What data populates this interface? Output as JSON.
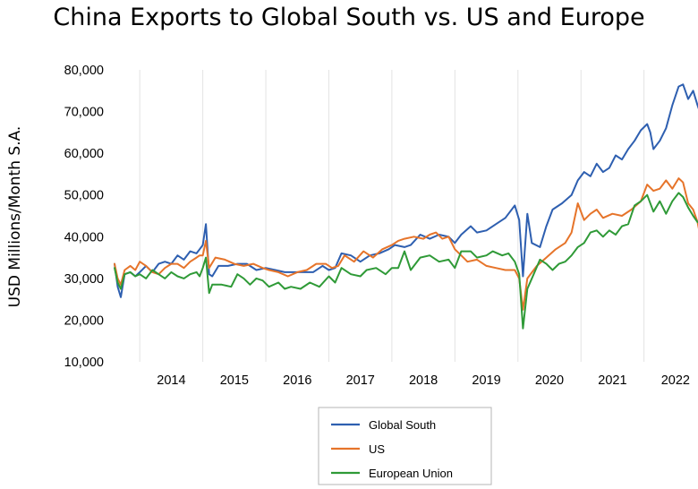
{
  "chart_data": {
    "type": "line",
    "title": "China Exports to Global South vs. US and Europe",
    "xlabel": "",
    "ylabel": "USD Millions/Month S.A.",
    "ylim": [
      10000,
      80000
    ],
    "xlim": [
      2013.6,
      2022.8
    ],
    "y_ticks": [
      10000,
      20000,
      30000,
      40000,
      50000,
      60000,
      70000,
      80000
    ],
    "y_tick_labels": [
      "10,000",
      "20,000",
      "30,000",
      "40,000",
      "50,000",
      "60,000",
      "70,000",
      "80,000"
    ],
    "x_tick_labels": [
      "2014",
      "2015",
      "2016",
      "2017",
      "2018",
      "2019",
      "2020",
      "2021",
      "2022"
    ],
    "grid": "vertical",
    "legend_position": "bottom-center",
    "colors": {
      "Global South": "#2e5fb0",
      "US": "#e6742a",
      "European Union": "#2f9a37"
    },
    "series": [
      {
        "name": "Global South",
        "points": [
          [
            2013.6,
            33500
          ],
          [
            2013.65,
            28000
          ],
          [
            2013.7,
            25500
          ],
          [
            2013.76,
            31000
          ],
          [
            2013.85,
            31500
          ],
          [
            2013.93,
            30500
          ],
          [
            2014.0,
            31500
          ],
          [
            2014.1,
            33000
          ],
          [
            2014.2,
            31500
          ],
          [
            2014.3,
            33500
          ],
          [
            2014.4,
            34000
          ],
          [
            2014.5,
            33500
          ],
          [
            2014.6,
            35500
          ],
          [
            2014.7,
            34500
          ],
          [
            2014.8,
            36500
          ],
          [
            2014.9,
            36000
          ],
          [
            2014.95,
            37000
          ],
          [
            2015.0,
            38000
          ],
          [
            2015.05,
            43000
          ],
          [
            2015.1,
            31000
          ],
          [
            2015.15,
            30500
          ],
          [
            2015.25,
            33000
          ],
          [
            2015.4,
            33000
          ],
          [
            2015.55,
            33500
          ],
          [
            2015.7,
            33500
          ],
          [
            2015.85,
            32000
          ],
          [
            2016.0,
            32500
          ],
          [
            2016.15,
            32000
          ],
          [
            2016.3,
            31500
          ],
          [
            2016.45,
            31500
          ],
          [
            2016.6,
            31500
          ],
          [
            2016.75,
            31500
          ],
          [
            2016.9,
            33000
          ],
          [
            2017.0,
            32000
          ],
          [
            2017.1,
            32500
          ],
          [
            2017.2,
            36000
          ],
          [
            2017.35,
            35500
          ],
          [
            2017.5,
            34000
          ],
          [
            2017.65,
            35500
          ],
          [
            2017.8,
            36000
          ],
          [
            2017.95,
            37000
          ],
          [
            2018.05,
            38000
          ],
          [
            2018.2,
            37500
          ],
          [
            2018.3,
            38000
          ],
          [
            2018.45,
            40500
          ],
          [
            2018.6,
            39500
          ],
          [
            2018.75,
            40500
          ],
          [
            2018.9,
            40000
          ],
          [
            2019.0,
            38500
          ],
          [
            2019.1,
            40500
          ],
          [
            2019.25,
            42500
          ],
          [
            2019.35,
            41000
          ],
          [
            2019.5,
            41500
          ],
          [
            2019.65,
            43000
          ],
          [
            2019.8,
            44500
          ],
          [
            2019.95,
            47500
          ],
          [
            2020.02,
            44000
          ],
          [
            2020.08,
            30500
          ],
          [
            2020.15,
            45500
          ],
          [
            2020.22,
            38500
          ],
          [
            2020.35,
            37500
          ],
          [
            2020.45,
            42500
          ],
          [
            2020.55,
            46500
          ],
          [
            2020.7,
            48000
          ],
          [
            2020.85,
            50000
          ],
          [
            2020.95,
            53500
          ],
          [
            2021.05,
            55500
          ],
          [
            2021.15,
            54500
          ],
          [
            2021.25,
            57500
          ],
          [
            2021.35,
            55500
          ],
          [
            2021.45,
            56500
          ],
          [
            2021.55,
            59500
          ],
          [
            2021.65,
            58500
          ],
          [
            2021.75,
            61000
          ],
          [
            2021.85,
            63000
          ],
          [
            2021.95,
            65500
          ],
          [
            2022.05,
            67000
          ],
          [
            2022.1,
            65000
          ],
          [
            2022.15,
            61000
          ],
          [
            2022.25,
            63000
          ],
          [
            2022.35,
            66000
          ],
          [
            2022.45,
            71500
          ],
          [
            2022.55,
            76000
          ],
          [
            2022.62,
            76500
          ],
          [
            2022.7,
            73000
          ],
          [
            2022.78,
            75000
          ],
          [
            2022.85,
            71500
          ],
          [
            2022.92,
            68500
          ],
          [
            2023.0,
            68500
          ]
        ]
      },
      {
        "name": "US",
        "points": [
          [
            2013.6,
            33500
          ],
          [
            2013.65,
            30000
          ],
          [
            2013.7,
            28500
          ],
          [
            2013.76,
            32000
          ],
          [
            2013.85,
            33000
          ],
          [
            2013.93,
            32000
          ],
          [
            2014.0,
            34000
          ],
          [
            2014.1,
            33000
          ],
          [
            2014.2,
            31500
          ],
          [
            2014.3,
            31000
          ],
          [
            2014.4,
            32500
          ],
          [
            2014.5,
            33500
          ],
          [
            2014.6,
            33500
          ],
          [
            2014.7,
            32500
          ],
          [
            2014.8,
            34000
          ],
          [
            2014.9,
            35000
          ],
          [
            2014.95,
            35500
          ],
          [
            2015.0,
            35500
          ],
          [
            2015.05,
            39000
          ],
          [
            2015.1,
            32500
          ],
          [
            2015.2,
            35000
          ],
          [
            2015.35,
            34500
          ],
          [
            2015.5,
            33500
          ],
          [
            2015.65,
            33000
          ],
          [
            2015.8,
            33500
          ],
          [
            2015.95,
            32500
          ],
          [
            2016.05,
            32000
          ],
          [
            2016.2,
            31500
          ],
          [
            2016.35,
            30500
          ],
          [
            2016.5,
            31500
          ],
          [
            2016.65,
            32000
          ],
          [
            2016.8,
            33500
          ],
          [
            2016.95,
            33500
          ],
          [
            2017.05,
            32500
          ],
          [
            2017.15,
            33000
          ],
          [
            2017.25,
            35500
          ],
          [
            2017.4,
            34000
          ],
          [
            2017.55,
            36500
          ],
          [
            2017.7,
            35000
          ],
          [
            2017.85,
            37000
          ],
          [
            2018.0,
            38000
          ],
          [
            2018.1,
            39000
          ],
          [
            2018.2,
            39500
          ],
          [
            2018.35,
            40000
          ],
          [
            2018.5,
            39500
          ],
          [
            2018.6,
            40500
          ],
          [
            2018.7,
            41000
          ],
          [
            2018.8,
            39500
          ],
          [
            2018.9,
            40000
          ],
          [
            2019.0,
            37000
          ],
          [
            2019.1,
            35500
          ],
          [
            2019.2,
            34000
          ],
          [
            2019.35,
            34500
          ],
          [
            2019.5,
            33000
          ],
          [
            2019.65,
            32500
          ],
          [
            2019.8,
            32000
          ],
          [
            2019.95,
            32000
          ],
          [
            2020.02,
            30000
          ],
          [
            2020.08,
            22500
          ],
          [
            2020.15,
            30000
          ],
          [
            2020.3,
            33000
          ],
          [
            2020.45,
            35000
          ],
          [
            2020.6,
            37000
          ],
          [
            2020.75,
            38500
          ],
          [
            2020.85,
            41000
          ],
          [
            2020.95,
            48000
          ],
          [
            2021.05,
            44000
          ],
          [
            2021.15,
            45500
          ],
          [
            2021.25,
            46500
          ],
          [
            2021.35,
            44500
          ],
          [
            2021.5,
            45500
          ],
          [
            2021.65,
            45000
          ],
          [
            2021.8,
            46500
          ],
          [
            2021.95,
            48500
          ],
          [
            2022.05,
            52500
          ],
          [
            2022.15,
            51000
          ],
          [
            2022.25,
            51500
          ],
          [
            2022.35,
            53500
          ],
          [
            2022.45,
            51500
          ],
          [
            2022.55,
            54000
          ],
          [
            2022.62,
            53000
          ],
          [
            2022.7,
            48000
          ],
          [
            2022.78,
            46500
          ],
          [
            2022.85,
            43500
          ],
          [
            2022.92,
            38000
          ],
          [
            2022.96,
            38500
          ],
          [
            2023.0,
            42000
          ]
        ]
      },
      {
        "name": "European Union",
        "points": [
          [
            2013.6,
            32500
          ],
          [
            2013.65,
            29000
          ],
          [
            2013.7,
            27500
          ],
          [
            2013.76,
            31000
          ],
          [
            2013.85,
            31500
          ],
          [
            2013.93,
            30500
          ],
          [
            2014.0,
            31000
          ],
          [
            2014.1,
            30000
          ],
          [
            2014.2,
            32000
          ],
          [
            2014.3,
            31000
          ],
          [
            2014.4,
            30000
          ],
          [
            2014.5,
            31500
          ],
          [
            2014.6,
            30500
          ],
          [
            2014.7,
            30000
          ],
          [
            2014.8,
            31000
          ],
          [
            2014.9,
            31500
          ],
          [
            2014.95,
            30500
          ],
          [
            2015.0,
            32500
          ],
          [
            2015.05,
            35000
          ],
          [
            2015.1,
            26500
          ],
          [
            2015.15,
            28500
          ],
          [
            2015.3,
            28500
          ],
          [
            2015.45,
            28000
          ],
          [
            2015.55,
            31000
          ],
          [
            2015.65,
            30000
          ],
          [
            2015.75,
            28500
          ],
          [
            2015.85,
            30000
          ],
          [
            2015.95,
            29500
          ],
          [
            2016.05,
            28000
          ],
          [
            2016.2,
            29000
          ],
          [
            2016.3,
            27500
          ],
          [
            2016.4,
            28000
          ],
          [
            2016.55,
            27500
          ],
          [
            2016.7,
            29000
          ],
          [
            2016.85,
            28000
          ],
          [
            2017.0,
            30500
          ],
          [
            2017.1,
            29000
          ],
          [
            2017.2,
            32500
          ],
          [
            2017.35,
            31000
          ],
          [
            2017.5,
            30500
          ],
          [
            2017.6,
            32000
          ],
          [
            2017.75,
            32500
          ],
          [
            2017.9,
            31000
          ],
          [
            2018.0,
            32500
          ],
          [
            2018.1,
            32500
          ],
          [
            2018.2,
            36500
          ],
          [
            2018.3,
            32000
          ],
          [
            2018.45,
            35000
          ],
          [
            2018.6,
            35500
          ],
          [
            2018.75,
            34000
          ],
          [
            2018.9,
            34500
          ],
          [
            2019.0,
            32500
          ],
          [
            2019.1,
            36500
          ],
          [
            2019.25,
            36500
          ],
          [
            2019.35,
            35000
          ],
          [
            2019.5,
            35500
          ],
          [
            2019.6,
            36500
          ],
          [
            2019.75,
            35500
          ],
          [
            2019.85,
            36000
          ],
          [
            2019.95,
            34000
          ],
          [
            2020.02,
            31000
          ],
          [
            2020.08,
            18000
          ],
          [
            2020.15,
            27500
          ],
          [
            2020.25,
            31000
          ],
          [
            2020.35,
            34500
          ],
          [
            2020.45,
            33500
          ],
          [
            2020.55,
            32000
          ],
          [
            2020.65,
            33500
          ],
          [
            2020.75,
            34000
          ],
          [
            2020.85,
            35500
          ],
          [
            2020.95,
            37500
          ],
          [
            2021.05,
            38500
          ],
          [
            2021.15,
            41000
          ],
          [
            2021.25,
            41500
          ],
          [
            2021.35,
            40000
          ],
          [
            2021.45,
            41500
          ],
          [
            2021.55,
            40500
          ],
          [
            2021.65,
            42500
          ],
          [
            2021.75,
            43000
          ],
          [
            2021.85,
            47500
          ],
          [
            2021.95,
            48500
          ],
          [
            2022.05,
            50000
          ],
          [
            2022.15,
            46000
          ],
          [
            2022.25,
            48500
          ],
          [
            2022.35,
            45500
          ],
          [
            2022.45,
            48500
          ],
          [
            2022.55,
            50500
          ],
          [
            2022.62,
            49500
          ],
          [
            2022.7,
            47000
          ],
          [
            2022.78,
            45000
          ],
          [
            2022.85,
            43500
          ],
          [
            2022.92,
            43000
          ],
          [
            2023.0,
            39500
          ]
        ]
      }
    ]
  }
}
